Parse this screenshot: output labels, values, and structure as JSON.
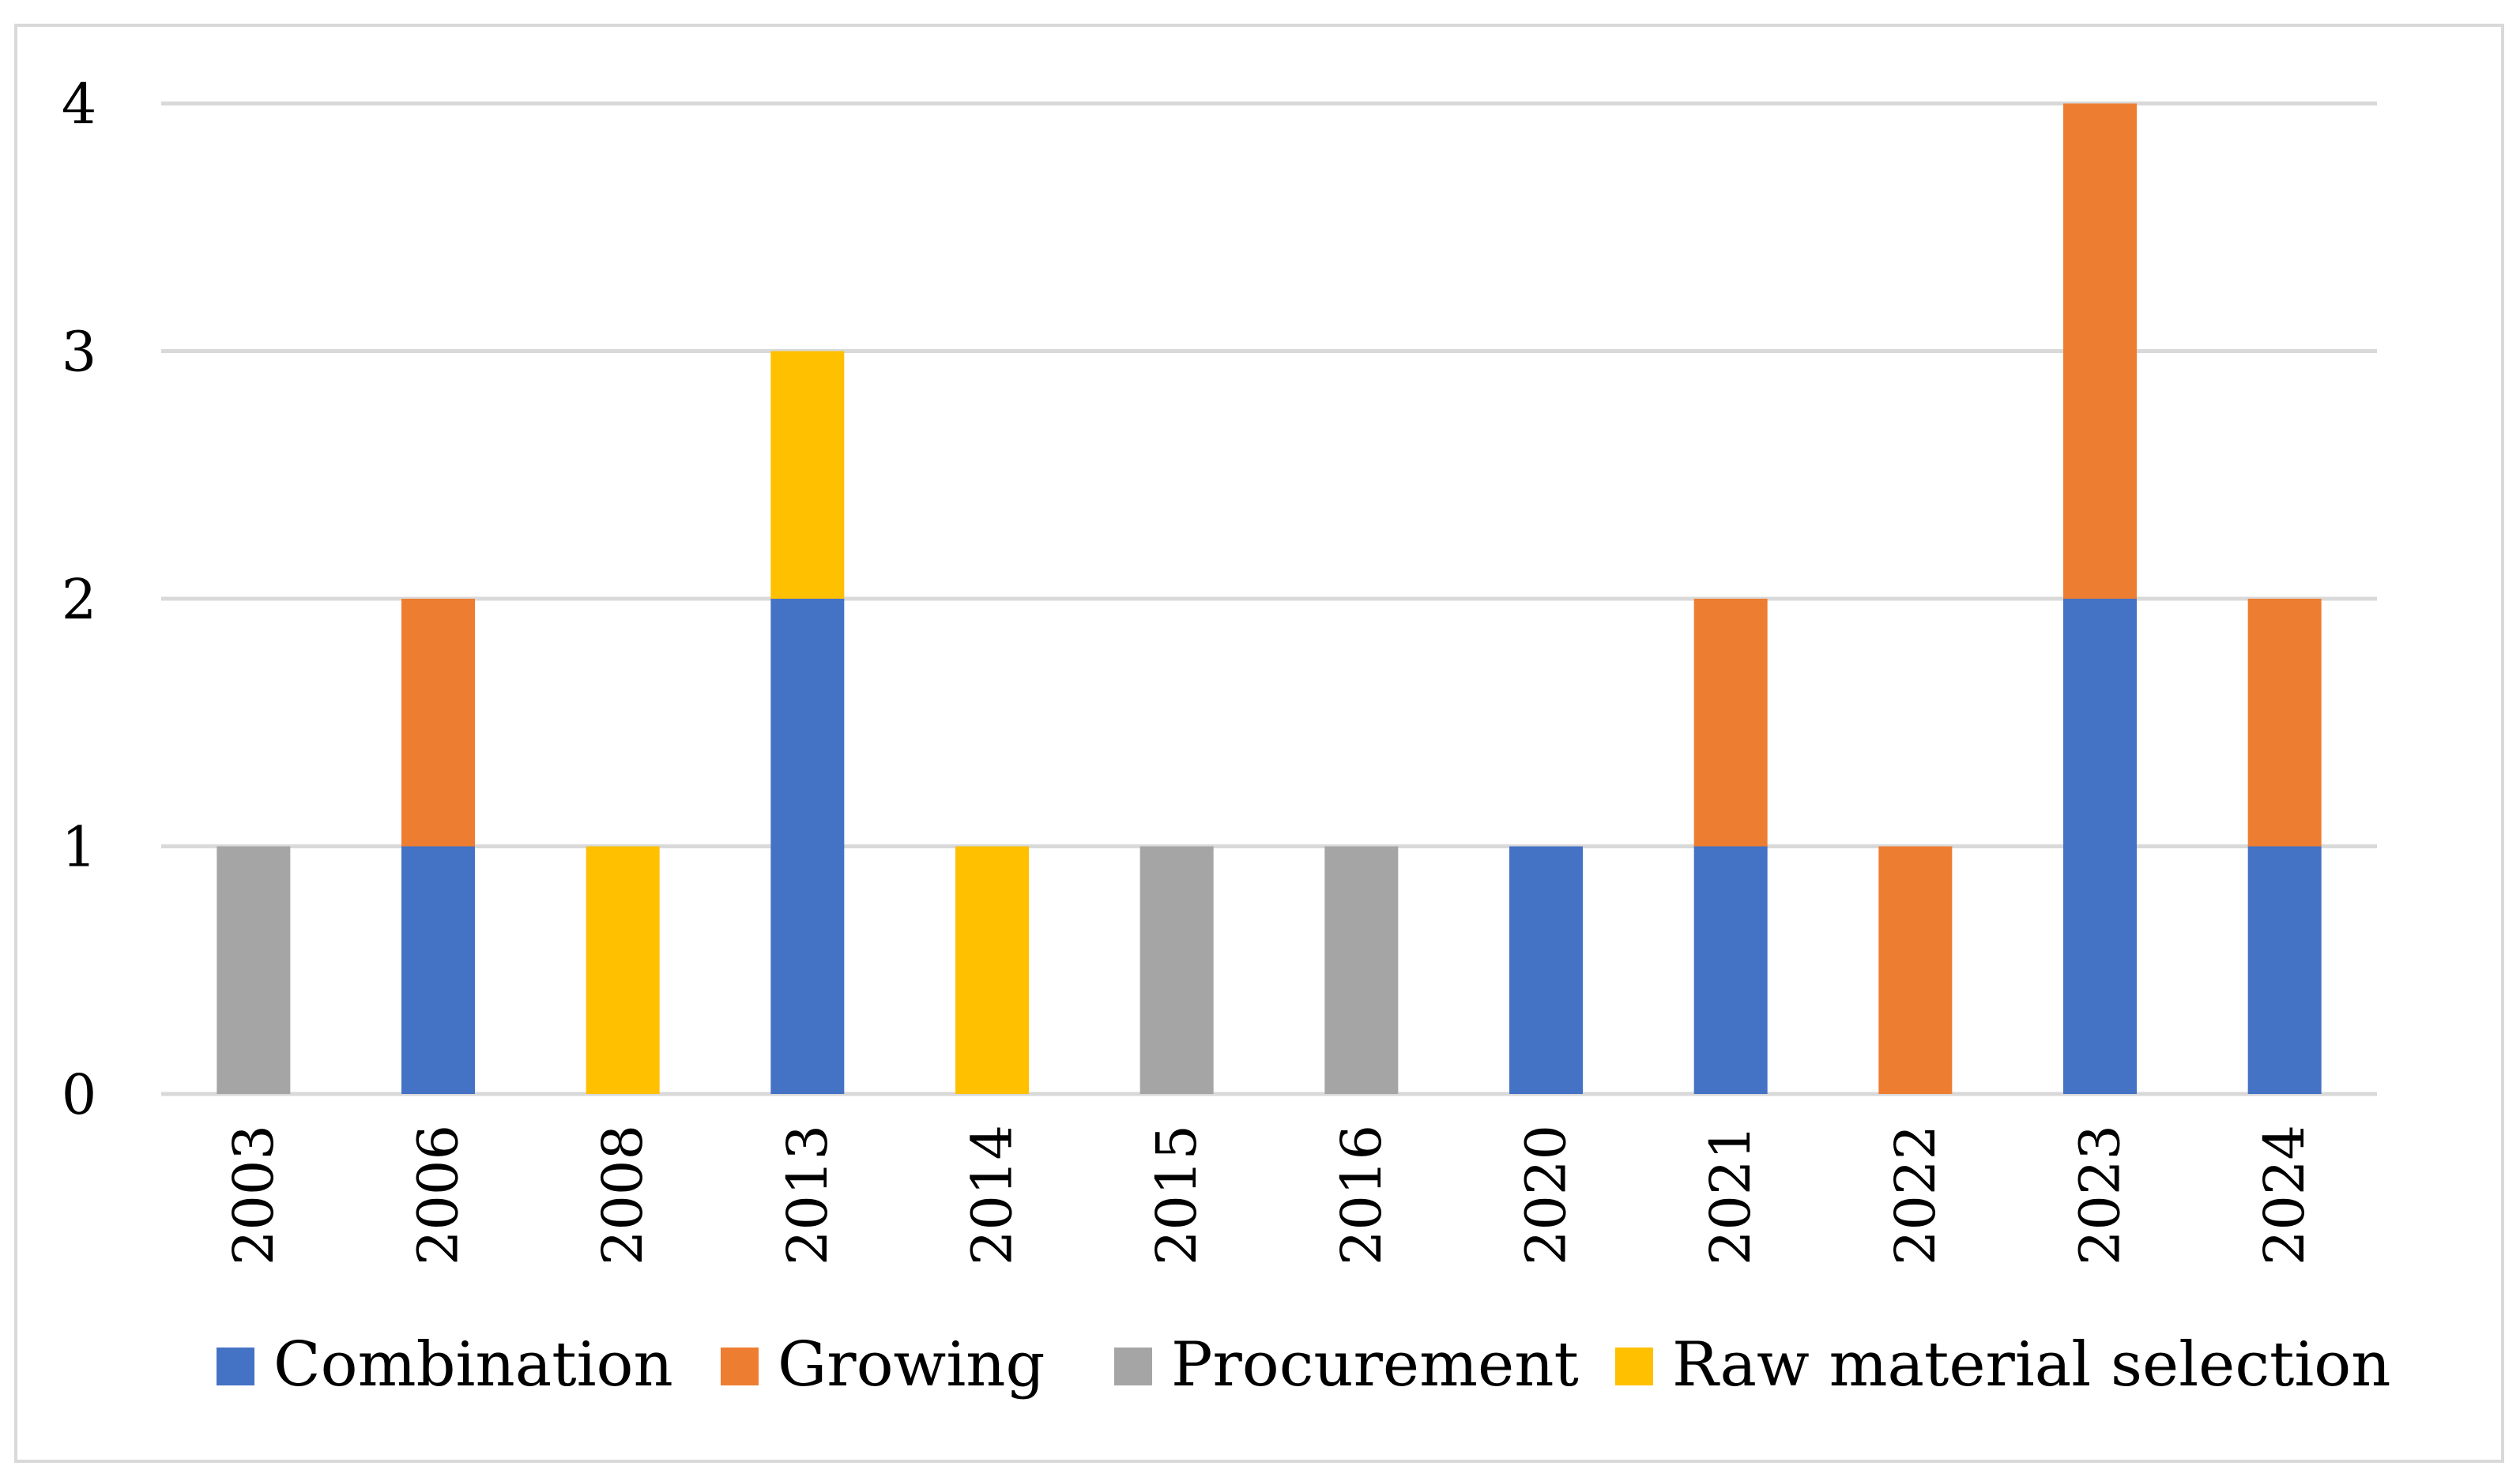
{
  "chart_data": {
    "type": "bar",
    "stacked": true,
    "categories": [
      "2003",
      "2006",
      "2008",
      "2013",
      "2014",
      "2015",
      "2016",
      "2020",
      "2021",
      "2022",
      "2023",
      "2024"
    ],
    "series": [
      {
        "name": "Combination",
        "color": "#4472c4",
        "values": [
          0,
          1,
          0,
          2,
          0,
          0,
          0,
          1,
          1,
          0,
          2,
          1
        ]
      },
      {
        "name": "Growing",
        "color": "#ed7d31",
        "values": [
          0,
          1,
          0,
          0,
          0,
          0,
          0,
          0,
          1,
          1,
          2,
          1
        ]
      },
      {
        "name": "Procurement",
        "color": "#a5a5a5",
        "values": [
          1,
          0,
          0,
          0,
          0,
          1,
          1,
          0,
          0,
          0,
          0,
          0
        ]
      },
      {
        "name": "Raw material selection",
        "color": "#ffc000",
        "values": [
          0,
          0,
          1,
          1,
          1,
          0,
          0,
          0,
          0,
          0,
          0,
          0
        ]
      }
    ],
    "yticks": [
      "0",
      "1",
      "2",
      "3",
      "4"
    ],
    "ylim": [
      0,
      4
    ],
    "title": "",
    "xlabel": "",
    "ylabel": "",
    "grid": true,
    "legend_position": "bottom",
    "gridline_color": "#d9d9d9"
  }
}
